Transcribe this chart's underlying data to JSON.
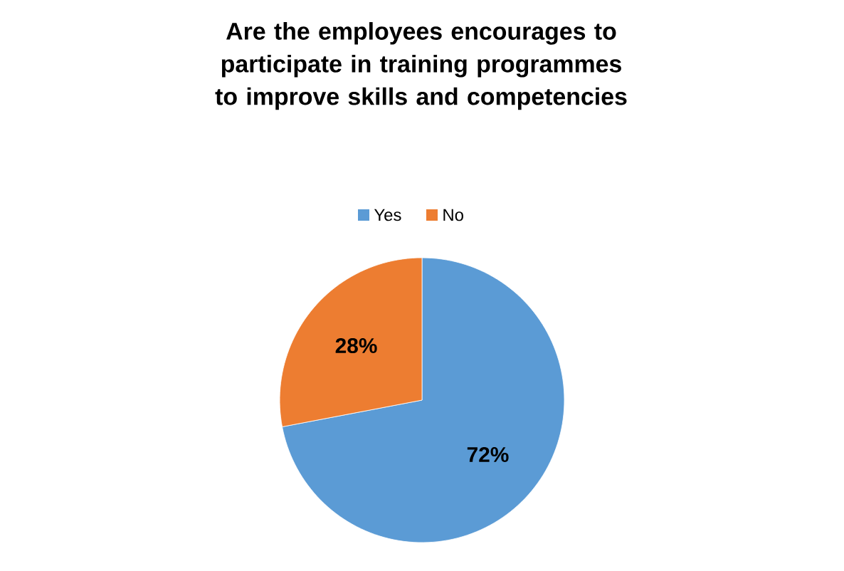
{
  "chart_data": {
    "type": "pie",
    "title": "Are the employees encourages to participate in training programmes to improve skills and competencies",
    "categories": [
      "Yes",
      "No"
    ],
    "values": [
      72,
      28
    ],
    "value_labels": [
      "72%",
      "28%"
    ],
    "colors": [
      "#5b9bd5",
      "#ed7d31"
    ],
    "legend": "top"
  }
}
